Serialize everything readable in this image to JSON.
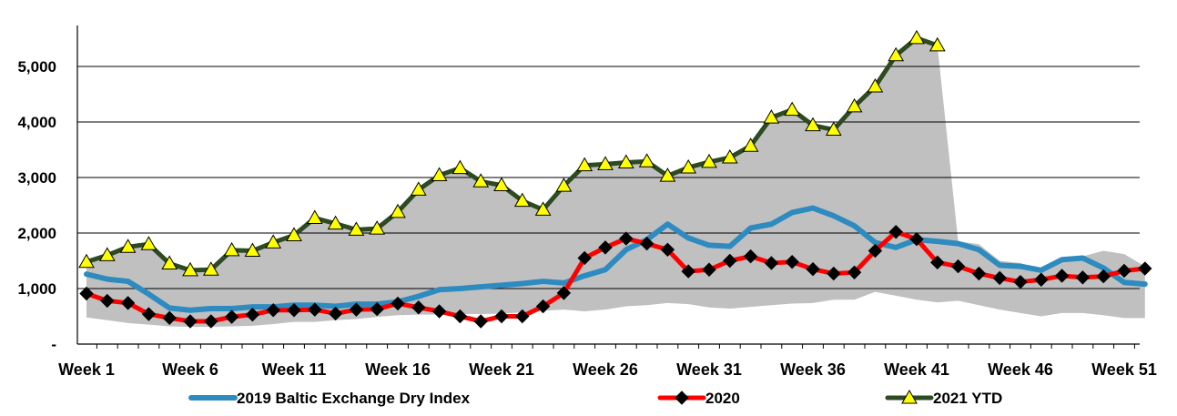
{
  "chart_data": {
    "type": "line",
    "title": "",
    "xlabel": "",
    "ylabel": "",
    "ylim": [
      0,
      5700
    ],
    "y_ticks": [
      {
        "value": 0,
        "label": "-"
      },
      {
        "value": 1000,
        "label": "1,000"
      },
      {
        "value": 2000,
        "label": "2,000"
      },
      {
        "value": 3000,
        "label": "3,000"
      },
      {
        "value": 4000,
        "label": "4,000"
      },
      {
        "value": 5000,
        "label": "5,000"
      }
    ],
    "x_ticks": [
      {
        "week": 1,
        "label": "Week 1"
      },
      {
        "week": 6,
        "label": "Week 6"
      },
      {
        "week": 11,
        "label": "Week 11"
      },
      {
        "week": 16,
        "label": "Week 16"
      },
      {
        "week": 21,
        "label": "Week 21"
      },
      {
        "week": 26,
        "label": "Week 26"
      },
      {
        "week": 31,
        "label": "Week 31"
      },
      {
        "week": 36,
        "label": "Week 36"
      },
      {
        "week": 41,
        "label": "Week 41"
      },
      {
        "week": 46,
        "label": "Week 46"
      },
      {
        "week": 51,
        "label": "Week 51"
      }
    ],
    "grid": true,
    "legend_position": "bottom",
    "range_band": {
      "color": "#c0c0c0",
      "upper": [
        1480,
        1600,
        1750,
        1800,
        1450,
        1330,
        1340,
        1690,
        1680,
        1830,
        1960,
        2270,
        2170,
        2060,
        2080,
        2380,
        2780,
        3040,
        3170,
        2930,
        2860,
        2580,
        2420,
        2850,
        3220,
        3240,
        3270,
        3290,
        3030,
        3180,
        3280,
        3360,
        3570,
        4080,
        4220,
        3940,
        3860,
        4280,
        4640,
        5200,
        5510,
        5380,
        1850,
        1800,
        1500,
        1460,
        1340,
        1520,
        1580,
        1680,
        1620,
        1400
      ],
      "lower": [
        480,
        430,
        380,
        350,
        320,
        310,
        310,
        320,
        330,
        360,
        400,
        400,
        430,
        450,
        490,
        520,
        530,
        530,
        540,
        540,
        550,
        570,
        600,
        620,
        590,
        620,
        680,
        700,
        740,
        720,
        660,
        640,
        670,
        700,
        730,
        740,
        800,
        800,
        940,
        870,
        800,
        750,
        780,
        700,
        620,
        560,
        500,
        560,
        560,
        520,
        470,
        470
      ]
    },
    "series": [
      {
        "name": "2019 Baltic Exchange Dry Index",
        "color": "#2e8bc0",
        "marker": "none",
        "values": [
          1260,
          1170,
          1130,
          900,
          650,
          610,
          640,
          640,
          670,
          670,
          700,
          700,
          680,
          720,
          720,
          760,
          860,
          980,
          1000,
          1030,
          1060,
          1090,
          1130,
          1100,
          1230,
          1340,
          1700,
          1880,
          2160,
          1910,
          1780,
          1760,
          2090,
          2160,
          2370,
          2450,
          2310,
          2130,
          1830,
          1740,
          1880,
          1850,
          1810,
          1700,
          1420,
          1400,
          1330,
          1520,
          1550,
          1370,
          1110,
          1080
        ]
      },
      {
        "name": "2020",
        "color": "#ff0000",
        "marker": "diamond",
        "values": [
          910,
          780,
          740,
          540,
          470,
          410,
          410,
          490,
          530,
          610,
          610,
          620,
          550,
          620,
          630,
          730,
          660,
          590,
          500,
          410,
          500,
          500,
          680,
          920,
          1550,
          1740,
          1900,
          1810,
          1700,
          1310,
          1340,
          1500,
          1580,
          1460,
          1480,
          1350,
          1270,
          1290,
          1680,
          2020,
          1890,
          1470,
          1400,
          1270,
          1190,
          1120,
          1160,
          1230,
          1200,
          1220,
          1320,
          1360
        ]
      },
      {
        "name": "2021 YTD",
        "color": "#2d4a22",
        "marker": "triangle",
        "marker_fill": "#ffff00",
        "values": [
          1480,
          1600,
          1750,
          1800,
          1450,
          1330,
          1340,
          1690,
          1680,
          1830,
          1960,
          2270,
          2170,
          2060,
          2080,
          2380,
          2780,
          3040,
          3170,
          2930,
          2860,
          2580,
          2420,
          2850,
          3220,
          3240,
          3270,
          3290,
          3030,
          3180,
          3280,
          3360,
          3570,
          4080,
          4220,
          3940,
          3860,
          4280,
          4640,
          5200,
          5510,
          5380
        ]
      }
    ]
  }
}
